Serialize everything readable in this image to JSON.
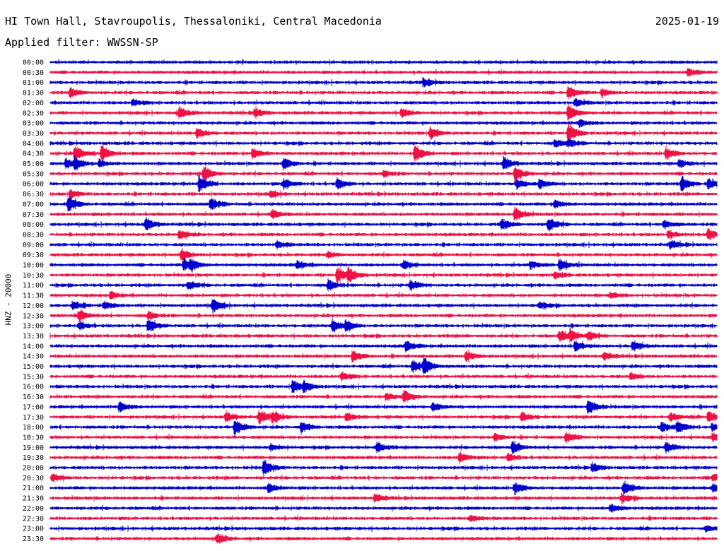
{
  "header": {
    "station": "HI Town Hall, Stavroupolis, Thessaloniki, Central Macedonia",
    "date": "2025-01-19",
    "filter": "Applied filter: WWSSN-SP"
  },
  "colors": {
    "blue": "#0000cc",
    "red": "#ee1144"
  },
  "chart_data": {
    "type": "line",
    "title": "HI Town Hall, Stavroupolis, Thessaloniki, Central Macedonia",
    "date": "2025-01-19",
    "filter": "Applied filter: WWSSN-SP",
    "ylabel": "HNZ - 20000",
    "xlabel": "",
    "x_unit": "minutes",
    "xlim": [
      0,
      30
    ],
    "trace_colors": [
      "blue",
      "red"
    ],
    "grid": false,
    "traces": [
      {
        "time": "00:00",
        "events": []
      },
      {
        "time": "00:30",
        "events": [
          [
            28.7,
            0.6
          ]
        ]
      },
      {
        "time": "01:00",
        "events": [
          [
            16.8,
            0.6
          ]
        ]
      },
      {
        "time": "01:30",
        "events": [
          [
            0.9,
            0.7
          ],
          [
            23.3,
            1.0
          ],
          [
            24.8,
            0.6
          ]
        ]
      },
      {
        "time": "02:00",
        "events": [
          [
            3.7,
            0.5
          ],
          [
            23.6,
            0.6
          ]
        ]
      },
      {
        "time": "02:30",
        "events": [
          [
            5.8,
            0.9
          ],
          [
            9.2,
            0.7
          ],
          [
            15.8,
            0.7
          ],
          [
            23.3,
            1.3
          ]
        ]
      },
      {
        "time": "03:00",
        "events": [
          [
            23.8,
            0.6
          ]
        ]
      },
      {
        "time": "03:30",
        "events": [
          [
            6.6,
            0.8
          ],
          [
            17.1,
            0.9
          ],
          [
            23.3,
            1.5
          ]
        ]
      },
      {
        "time": "04:00",
        "events": [
          [
            22.7,
            0.6
          ],
          [
            23.3,
            0.6
          ]
        ]
      },
      {
        "time": "04:30",
        "events": [
          [
            1.1,
            1.3
          ],
          [
            2.3,
            1.2
          ],
          [
            9.1,
            0.8
          ],
          [
            16.4,
            1.3
          ],
          [
            27.7,
            0.9
          ]
        ]
      },
      {
        "time": "05:00",
        "events": [
          [
            0.7,
            0.7
          ],
          [
            1.1,
            0.9
          ],
          [
            2.2,
            0.6
          ],
          [
            10.5,
            0.9
          ],
          [
            20.4,
            1.0
          ],
          [
            28.3,
            0.6
          ]
        ]
      },
      {
        "time": "05:30",
        "events": [
          [
            6.9,
            1.2
          ],
          [
            15.0,
            0.5
          ],
          [
            20.9,
            1.2
          ]
        ]
      },
      {
        "time": "06:00",
        "events": [
          [
            6.7,
            1.3
          ],
          [
            10.5,
            0.8
          ],
          [
            12.9,
            0.8
          ],
          [
            21.0,
            0.7
          ],
          [
            22.0,
            0.7
          ],
          [
            28.4,
            1.2
          ],
          [
            29.6,
            0.8
          ]
        ]
      },
      {
        "time": "06:30",
        "events": [
          [
            0.9,
            0.6
          ],
          [
            9.9,
            0.5
          ]
        ]
      },
      {
        "time": "07:00",
        "events": [
          [
            0.8,
            1.2
          ],
          [
            7.2,
            1.0
          ],
          [
            22.7,
            0.6
          ]
        ]
      },
      {
        "time": "07:30",
        "events": [
          [
            10.0,
            0.6
          ],
          [
            20.9,
            1.1
          ]
        ]
      },
      {
        "time": "08:00",
        "events": [
          [
            4.3,
            1.0
          ],
          [
            20.3,
            0.8
          ],
          [
            22.4,
            1.1
          ],
          [
            27.6,
            0.6
          ]
        ]
      },
      {
        "time": "08:30",
        "events": [
          [
            5.8,
            0.7
          ],
          [
            27.8,
            0.6
          ],
          [
            29.6,
            0.9
          ]
        ]
      },
      {
        "time": "09:00",
        "events": [
          [
            10.2,
            0.5
          ],
          [
            27.9,
            0.6
          ]
        ]
      },
      {
        "time": "09:30",
        "events": [
          [
            5.9,
            0.9
          ],
          [
            12.5,
            0.4
          ]
        ]
      },
      {
        "time": "10:00",
        "events": [
          [
            6.0,
            0.9
          ],
          [
            6.3,
            0.7
          ],
          [
            11.1,
            0.6
          ],
          [
            15.9,
            0.6
          ],
          [
            21.6,
            0.6
          ],
          [
            22.9,
            0.9
          ]
        ]
      },
      {
        "time": "10:30",
        "events": [
          [
            12.9,
            1.2
          ],
          [
            13.4,
            1.0
          ],
          [
            22.7,
            0.5
          ]
        ]
      },
      {
        "time": "11:00",
        "events": [
          [
            6.2,
            0.7
          ],
          [
            12.5,
            0.8
          ],
          [
            16.2,
            0.8
          ]
        ]
      },
      {
        "time": "11:30",
        "events": [
          [
            2.7,
            0.5
          ],
          [
            25.2,
            0.4
          ]
        ]
      },
      {
        "time": "12:00",
        "events": [
          [
            1.0,
            0.7
          ],
          [
            2.4,
            0.6
          ],
          [
            7.3,
            1.0
          ],
          [
            22.0,
            0.5
          ]
        ]
      },
      {
        "time": "12:30",
        "events": [
          [
            1.3,
            0.8
          ],
          [
            4.4,
            0.6
          ]
        ]
      },
      {
        "time": "13:00",
        "events": [
          [
            1.3,
            0.6
          ],
          [
            4.4,
            1.0
          ],
          [
            12.7,
            1.0
          ],
          [
            13.3,
            0.8
          ]
        ]
      },
      {
        "time": "13:30",
        "events": [
          [
            22.9,
            0.8
          ],
          [
            23.4,
            0.8
          ],
          [
            24.2,
            0.7
          ]
        ]
      },
      {
        "time": "14:00",
        "events": [
          [
            16.0,
            0.8
          ],
          [
            23.6,
            0.8
          ],
          [
            26.2,
            0.8
          ]
        ]
      },
      {
        "time": "14:30",
        "events": [
          [
            13.6,
            0.9
          ],
          [
            18.7,
            0.8
          ],
          [
            24.9,
            0.6
          ]
        ]
      },
      {
        "time": "15:00",
        "events": [
          [
            16.3,
            0.9
          ],
          [
            16.8,
            1.2
          ]
        ]
      },
      {
        "time": "15:30",
        "events": [
          [
            13.1,
            0.6
          ],
          [
            26.1,
            0.5
          ]
        ]
      },
      {
        "time": "16:00",
        "events": [
          [
            10.9,
            1.0
          ],
          [
            11.4,
            0.7
          ]
        ]
      },
      {
        "time": "16:30",
        "events": [
          [
            15.1,
            0.6
          ],
          [
            15.9,
            1.0
          ]
        ]
      },
      {
        "time": "17:00",
        "events": [
          [
            3.1,
            0.8
          ],
          [
            17.2,
            0.6
          ],
          [
            24.2,
            1.2
          ]
        ]
      },
      {
        "time": "17:30",
        "events": [
          [
            7.9,
            0.8
          ],
          [
            9.4,
            1.0
          ],
          [
            10.0,
            0.8
          ],
          [
            13.3,
            0.6
          ],
          [
            21.2,
            0.7
          ],
          [
            27.9,
            0.6
          ],
          [
            29.6,
            0.9
          ]
        ]
      },
      {
        "time": "18:00",
        "events": [
          [
            8.3,
            1.2
          ],
          [
            11.3,
            0.8
          ],
          [
            27.5,
            0.7
          ],
          [
            28.2,
            1.0
          ],
          [
            29.8,
            0.6
          ]
        ]
      },
      {
        "time": "18:30",
        "events": [
          [
            20.0,
            0.6
          ],
          [
            23.2,
            0.8
          ],
          [
            29.8,
            0.6
          ]
        ]
      },
      {
        "time": "19:00",
        "events": [
          [
            9.9,
            0.5
          ],
          [
            14.7,
            0.8
          ],
          [
            20.8,
            0.8
          ],
          [
            27.7,
            0.8
          ]
        ]
      },
      {
        "time": "19:30",
        "events": [
          [
            18.4,
            0.8
          ],
          [
            20.6,
            0.6
          ]
        ]
      },
      {
        "time": "20:00",
        "events": [
          [
            9.6,
            1.2
          ],
          [
            24.4,
            0.7
          ]
        ]
      },
      {
        "time": "20:30",
        "events": [
          [
            0.1,
            0.6
          ],
          [
            29.8,
            0.6
          ]
        ]
      },
      {
        "time": "21:00",
        "events": [
          [
            9.8,
            0.7
          ],
          [
            20.9,
            0.9
          ],
          [
            25.8,
            1.1
          ],
          [
            29.8,
            0.7
          ]
        ]
      },
      {
        "time": "21:30",
        "events": [
          [
            14.6,
            0.6
          ],
          [
            25.7,
            0.6
          ]
        ]
      },
      {
        "time": "22:00",
        "events": [
          [
            25.2,
            0.6
          ]
        ]
      },
      {
        "time": "22:30",
        "events": [
          [
            18.9,
            0.5
          ]
        ]
      },
      {
        "time": "23:00",
        "events": [
          [
            29.5,
            0.4
          ]
        ]
      },
      {
        "time": "23:30",
        "events": [
          [
            7.5,
            0.8
          ]
        ]
      }
    ]
  }
}
